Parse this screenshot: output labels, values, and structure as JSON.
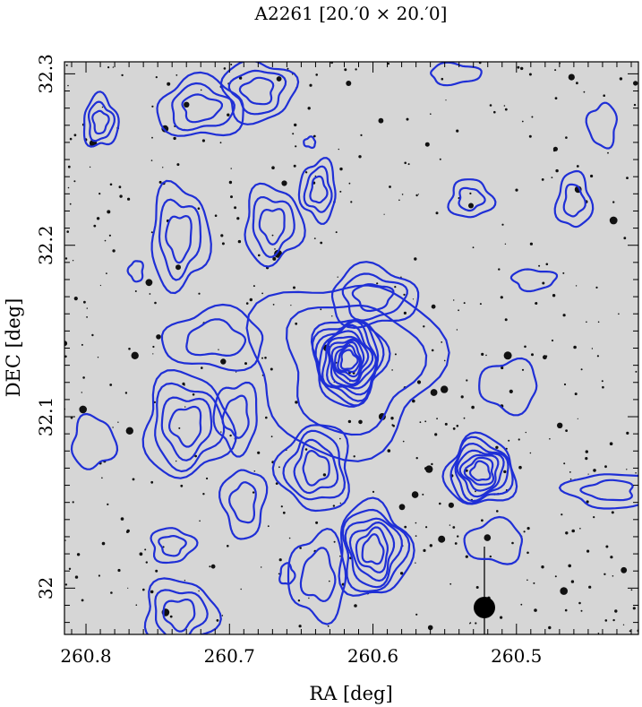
{
  "chart_data": {
    "type": "contour",
    "title": "A2261  [20.′0 × 20.′0]",
    "xlabel": "RA [deg]",
    "ylabel": "DEC [deg]",
    "xlim": [
      260.815,
      260.415
    ],
    "ylim": [
      31.973,
      32.307
    ],
    "x_ticks": [
      260.8,
      260.7,
      260.6,
      260.5
    ],
    "x_tick_labels": [
      "260.8",
      "260.7",
      "260.6",
      "260.5"
    ],
    "y_ticks": [
      32.0,
      32.1,
      32.2,
      32.3
    ],
    "y_tick_labels": [
      "32",
      "32.1",
      "32.2",
      "32.3"
    ],
    "grid": false,
    "background": "grayscale optical sky image with stars and galaxies",
    "contour_color": "#1f2fd6",
    "contours": [
      {
        "ra": 260.617,
        "dec": 32.133,
        "w": 0.05,
        "h": 0.05,
        "n": 12
      },
      {
        "ra": 260.615,
        "dec": 32.13,
        "w": 0.09,
        "h": 0.075,
        "n": 1
      },
      {
        "ra": 260.62,
        "dec": 32.13,
        "w": 0.13,
        "h": 0.1,
        "n": 1
      },
      {
        "ra": 260.6,
        "dec": 32.17,
        "w": 0.06,
        "h": 0.035,
        "n": 3
      },
      {
        "ra": 260.525,
        "dec": 32.068,
        "w": 0.048,
        "h": 0.04,
        "n": 7
      },
      {
        "ra": 260.6,
        "dec": 32.022,
        "w": 0.05,
        "h": 0.055,
        "n": 6
      },
      {
        "ra": 260.64,
        "dec": 32.07,
        "w": 0.05,
        "h": 0.05,
        "n": 4
      },
      {
        "ra": 260.73,
        "dec": 32.095,
        "w": 0.06,
        "h": 0.06,
        "n": 4
      },
      {
        "ra": 260.71,
        "dec": 32.145,
        "w": 0.07,
        "h": 0.035,
        "n": 2
      },
      {
        "ra": 260.735,
        "dec": 32.205,
        "w": 0.04,
        "h": 0.06,
        "n": 3
      },
      {
        "ra": 260.67,
        "dec": 32.212,
        "w": 0.04,
        "h": 0.045,
        "n": 3
      },
      {
        "ra": 260.638,
        "dec": 32.232,
        "w": 0.025,
        "h": 0.035,
        "n": 3
      },
      {
        "ra": 260.72,
        "dec": 32.28,
        "w": 0.06,
        "h": 0.035,
        "n": 3
      },
      {
        "ra": 260.68,
        "dec": 32.29,
        "w": 0.05,
        "h": 0.035,
        "n": 3
      },
      {
        "ra": 260.79,
        "dec": 32.272,
        "w": 0.024,
        "h": 0.03,
        "n": 3
      },
      {
        "ra": 260.695,
        "dec": 32.1,
        "w": 0.03,
        "h": 0.04,
        "n": 2
      },
      {
        "ra": 260.69,
        "dec": 32.05,
        "w": 0.03,
        "h": 0.04,
        "n": 2
      },
      {
        "ra": 260.74,
        "dec": 32.025,
        "w": 0.03,
        "h": 0.02,
        "n": 2
      },
      {
        "ra": 260.795,
        "dec": 32.085,
        "w": 0.03,
        "h": 0.03,
        "n": 1
      },
      {
        "ra": 260.735,
        "dec": 31.985,
        "w": 0.05,
        "h": 0.04,
        "n": 3
      },
      {
        "ra": 260.532,
        "dec": 32.227,
        "w": 0.03,
        "h": 0.022,
        "n": 2
      },
      {
        "ra": 260.46,
        "dec": 32.226,
        "w": 0.024,
        "h": 0.032,
        "n": 2
      },
      {
        "ra": 260.505,
        "dec": 32.118,
        "w": 0.04,
        "h": 0.03,
        "n": 1
      },
      {
        "ra": 260.515,
        "dec": 32.027,
        "w": 0.04,
        "h": 0.025,
        "n": 1
      },
      {
        "ra": 260.435,
        "dec": 32.057,
        "w": 0.06,
        "h": 0.02,
        "n": 2
      },
      {
        "ra": 260.44,
        "dec": 32.27,
        "w": 0.02,
        "h": 0.025,
        "n": 1
      },
      {
        "ra": 260.638,
        "dec": 32.007,
        "w": 0.04,
        "h": 0.05,
        "n": 2
      },
      {
        "ra": 260.488,
        "dec": 32.18,
        "w": 0.03,
        "h": 0.012,
        "n": 1
      },
      {
        "ra": 260.543,
        "dec": 32.3,
        "w": 0.035,
        "h": 0.012,
        "n": 1
      },
      {
        "ra": 260.765,
        "dec": 32.185,
        "w": 0.01,
        "h": 0.012,
        "n": 1
      },
      {
        "ra": 260.644,
        "dec": 32.26,
        "w": 0.008,
        "h": 0.006,
        "n": 1
      },
      {
        "ra": 260.66,
        "dec": 32.008,
        "w": 0.01,
        "h": 0.012,
        "n": 1
      }
    ]
  }
}
